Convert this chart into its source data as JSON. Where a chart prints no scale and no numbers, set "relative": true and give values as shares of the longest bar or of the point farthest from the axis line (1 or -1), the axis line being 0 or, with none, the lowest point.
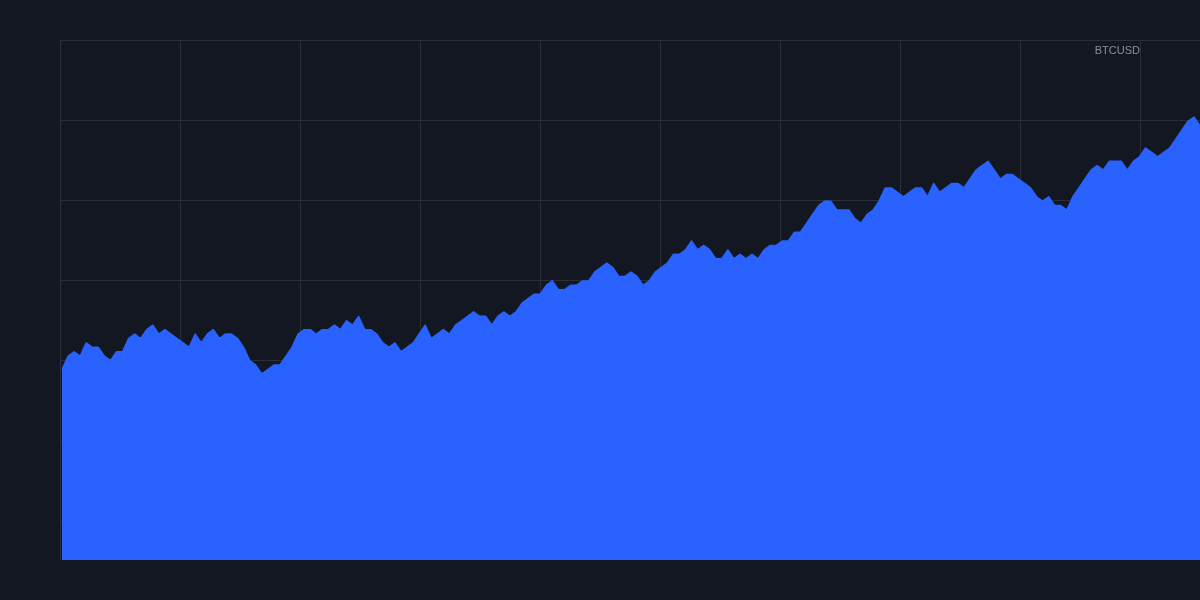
{
  "chart_data": {
    "type": "area",
    "relative": true,
    "grid": true,
    "tick_labels": false,
    "color": "#2962ff",
    "annotations": [
      "BTCUSD"
    ],
    "categories": [
      null,
      null,
      null,
      null,
      null,
      null,
      null,
      null,
      null,
      null,
      null,
      null,
      null,
      null,
      null,
      null,
      null,
      null,
      null,
      null,
      null,
      null,
      null,
      null,
      null,
      null,
      null,
      null,
      null,
      null,
      null,
      null,
      null,
      null,
      null,
      null,
      null,
      null,
      null,
      null,
      null,
      null,
      null,
      null,
      null,
      null,
      null,
      null,
      null,
      null,
      null,
      null,
      null,
      null,
      null,
      null,
      null,
      null,
      null,
      null,
      null,
      null,
      null,
      null,
      null,
      null,
      null,
      null,
      null,
      null,
      null,
      null,
      null,
      null,
      null,
      null,
      null,
      null,
      null,
      null,
      null,
      null,
      null,
      null,
      null,
      null,
      null,
      null,
      null,
      null,
      null,
      null,
      null,
      null,
      null,
      null,
      null,
      null,
      null,
      null,
      null,
      null,
      null,
      null,
      null,
      null,
      null,
      null,
      null,
      null,
      null,
      null,
      null,
      null,
      null,
      null,
      null,
      null,
      null,
      null,
      null,
      null,
      null,
      null,
      null,
      null,
      null,
      null,
      null,
      null,
      null,
      null,
      null,
      null,
      null,
      null,
      null,
      null,
      null,
      null,
      null,
      null,
      null,
      null,
      null,
      null,
      null,
      null,
      null,
      null,
      null,
      null,
      null,
      null,
      null,
      null,
      null,
      null,
      null,
      null,
      null,
      null,
      null,
      null,
      null,
      null,
      null,
      null,
      null,
      null,
      null,
      null,
      null,
      null,
      null,
      null,
      null,
      null,
      null,
      null,
      null,
      null,
      null,
      null,
      null,
      null,
      null,
      null,
      null
    ],
    "values": [
      0.43,
      0.46,
      0.47,
      0.46,
      0.49,
      0.48,
      0.48,
      0.46,
      0.45,
      0.47,
      0.47,
      0.5,
      0.51,
      0.5,
      0.52,
      0.53,
      0.51,
      0.52,
      0.51,
      0.5,
      0.49,
      0.48,
      0.51,
      0.49,
      0.51,
      0.52,
      0.5,
      0.51,
      0.51,
      0.5,
      0.48,
      0.45,
      0.44,
      0.42,
      0.43,
      0.44,
      0.44,
      0.46,
      0.48,
      0.51,
      0.52,
      0.52,
      0.51,
      0.52,
      0.52,
      0.53,
      0.52,
      0.54,
      0.53,
      0.55,
      0.52,
      0.52,
      0.51,
      0.49,
      0.48,
      0.49,
      0.47,
      0.48,
      0.49,
      0.51,
      0.53,
      0.5,
      0.51,
      0.52,
      0.51,
      0.53,
      0.54,
      0.55,
      0.56,
      0.55,
      0.55,
      0.53,
      0.55,
      0.56,
      0.55,
      0.56,
      0.58,
      0.59,
      0.6,
      0.6,
      0.62,
      0.63,
      0.61,
      0.61,
      0.62,
      0.62,
      0.63,
      0.63,
      0.65,
      0.66,
      0.67,
      0.66,
      0.64,
      0.64,
      0.65,
      0.64,
      0.62,
      0.63,
      0.65,
      0.66,
      0.67,
      0.69,
      0.69,
      0.7,
      0.72,
      0.7,
      0.71,
      0.7,
      0.68,
      0.68,
      0.7,
      0.68,
      0.69,
      0.68,
      0.69,
      0.68,
      0.7,
      0.71,
      0.71,
      0.72,
      0.72,
      0.74,
      0.74,
      0.76,
      0.78,
      0.8,
      0.81,
      0.81,
      0.79,
      0.79,
      0.79,
      0.77,
      0.76,
      0.78,
      0.79,
      0.81,
      0.84,
      0.84,
      0.83,
      0.82,
      0.83,
      0.84,
      0.84,
      0.82,
      0.85,
      0.83,
      0.84,
      0.85,
      0.85,
      0.84,
      0.86,
      0.88,
      0.89,
      0.9,
      0.88,
      0.86,
      0.87,
      0.87,
      0.86,
      0.85,
      0.84,
      0.82,
      0.81,
      0.82,
      0.8,
      0.8,
      0.79,
      0.82,
      0.84,
      0.86,
      0.88,
      0.89,
      0.88,
      0.9,
      0.9,
      0.9,
      0.88,
      0.9,
      0.91,
      0.93,
      0.92,
      0.91,
      0.92,
      0.93,
      0.95,
      0.97,
      0.99,
      1,
      0.98
    ]
  }
}
